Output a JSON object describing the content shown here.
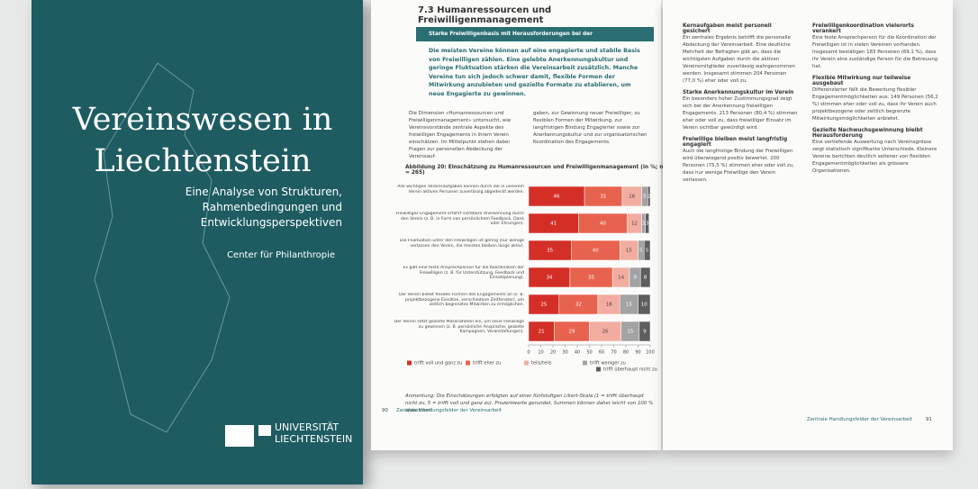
{
  "cover": {
    "title": "Vereinswesen in Liechtenstein",
    "subtitle": "Eine Analyse von Strukturen, Rahmenbedingungen und Entwicklungsperspektiven",
    "author": "Center für Philanthropie",
    "publisher": "UNIVERSITÄT LIECHTENSTEIN"
  },
  "left_page": {
    "section": "7.3  Humanressourcen und Freiwilligenmanagement",
    "box_title": "Starke Freiwilligenbasis mit Herausforderungen bei der Nachwuchsgewinnung",
    "box_text": "Die meisten Vereine können auf eine engagierte und stabile Basis von Freiwilligen zählen. Eine gelebte Anerkennungskultur und geringe Fluktuation stärken die Vereinsarbeit zusätzlich. Manche Vereine tun sich jedoch schwer damit, flexible Formen der Mitwirkung anzubieten und gezielte Formate zu etablieren, um neue Engagierte zu gewinnen.",
    "intro_left": "Die Dimension «Humanressourcen und Freiwilligenmanagement» untersucht, wie Vereinsvorstände zentrale Aspekte des freiwilligen Engagements in ihrem Verein einschätzen. Im Mittelpunkt stehen dabei Fragen zur personellen Abdeckung der Vereinsauf-",
    "intro_right": "gaben, zur Gewinnung neuer Freiwilliger, zu flexiblen Formen der Mitwirkung, zur langfristigen Bindung Engagierter sowie zur Anerkennungskultur und zur organisatorischen Koordination des Engagements.",
    "note": "Anmerkung: Die Einschätzungen erfolgten auf einer fünfstufigen Likert-Skala (1 = trifft überhaupt nicht zu, 5 = trifft voll und ganz zu). Prozentwerte gerundet, Summen können daher leicht von 100 % abweichen.",
    "page_number": "90",
    "footer": "Zentrale Handlungsfelder der Vereinsarbeit"
  },
  "right_page": {
    "sections": [
      {
        "heading": "Kernaufgaben meist personell gesichert",
        "text": "Ein zentrales Ergebnis betrifft die personelle Abdeckung der Vereinsarbeit. Eine deutliche Mehrheit der Befragten gibt an, dass die wichtigsten Aufgaben durch die aktiven Vereinsmitglieder zuverlässig wahrgenommen werden. Insgesamt stimmen 204 Personen (77,0 %) eher oder voll zu."
      },
      {
        "heading": "Starke Anerkennungskultur im Verein",
        "text": "Ein besonders hoher Zustimmungsgrad zeigt sich bei der Anerkennung freiwilligen Engagements. 213 Personen (80,4 %) stimmen eher oder voll zu, dass freiwilliger Einsatz im Verein sichtbar gewürdigt wird."
      },
      {
        "heading": "Freiwillige bleiben meist langfristig engagiert",
        "text": "Auch die langfristige Bindung der Freiwilligen wird überwiegend positiv bewertet. 200 Personen (75,5 %) stimmen eher oder voll zu, dass nur wenige Freiwillige den Verein verlassen."
      },
      {
        "heading": "Freiwilligenkoordination vielerorts verankert",
        "text": "Eine feste Ansprechperson für die Koordination der Freiwilligen ist in vielen Vereinen vorhanden. Insgesamt bestätigen 183 Personen (69,1 %), dass ihr Verein eine zuständige Person für die Betreuung hat."
      },
      {
        "heading": "Flexible Mitwirkung nur teilweise ausgebaut",
        "text": "Differenzierter fällt die Bewertung flexibler Engagementmöglichkeiten aus. 149 Personen (56,2 %) stimmen eher oder voll zu, dass ihr Verein auch projektbezogene oder zeitlich begrenzte Mitwirkungsmöglichkeiten anbietet."
      },
      {
        "heading": "Gezielte Nachwuchsgewinnung bleibt Herausforderung",
        "text": "Eine vertiefende Auswertung nach Vereinsgrösse zeigt statistisch signifikante Unterschiede. Kleinere Vereine berichten deutlich seltener von flexiblen Engagementmöglichkeiten als grössere Organisationen."
      }
    ],
    "page_number": "91",
    "footer": "Zentrale Handlungsfelder der Vereinsarbeit"
  },
  "chart_data": {
    "type": "stacked-bar-horizontal",
    "title": "Abbildung 20:  Einschätzung zu Humanressourcen und Freiwilligenmanagement (in %; n = 265)",
    "categories": [
      "Alle wichtigen Vereinsaufgaben können durch die in unserem Verein aktiven Personen zuverlässig abgedeckt werden.",
      "Freiwilliges Engagement erfährt sichtbare Anerkennung durch den Verein (z. B. in Form von persönlichem Feedback, Dank oder Ehrungen).",
      "Die Fluktuation unter den Freiwilligen ist gering (nur wenige verlassen den Verein, die meisten bleiben lange aktiv).",
      "Es gibt eine feste Ansprechperson für die Koordination der Freiwilligen (z. B. für Unterstützung, Feedback und Einsatzplanung).",
      "Der Verein bietet flexible Formen des Engagements an (z. B. projektbezogene Einsätze, verschiedene Zeitfenster), um zeitlich begrenztes Mitwirken zu ermöglichen.",
      "Der Verein setzt gezielte Massnahmen ein, um neue Freiwillige zu gewinnen (z. B. persönliche Ansprache, gezielte Kampagnen, Veranstaltungen)."
    ],
    "series": [
      {
        "name": "trifft voll und ganz zu",
        "color": "#d42f27",
        "values": [
          46,
          41,
          35,
          34,
          25,
          21
        ]
      },
      {
        "name": "trifft eher zu",
        "color": "#e8634f",
        "values": [
          31,
          40,
          40,
          35,
          32,
          29
        ]
      },
      {
        "name": "teils/teils",
        "color": "#f2ada0",
        "values": [
          16,
          12,
          15,
          14,
          18,
          26
        ]
      },
      {
        "name": "trifft weniger zu",
        "color": "#a3a3a3",
        "values": [
          5,
          3,
          5,
          9,
          15,
          15
        ]
      },
      {
        "name": "trifft überhaupt nicht zu",
        "color": "#5e5e5e",
        "values": [
          2,
          3,
          5,
          8,
          10,
          9
        ]
      }
    ],
    "xlim": [
      0,
      100
    ],
    "xticks": [
      0,
      10,
      20,
      30,
      40,
      50,
      60,
      70,
      80,
      90,
      100
    ]
  }
}
